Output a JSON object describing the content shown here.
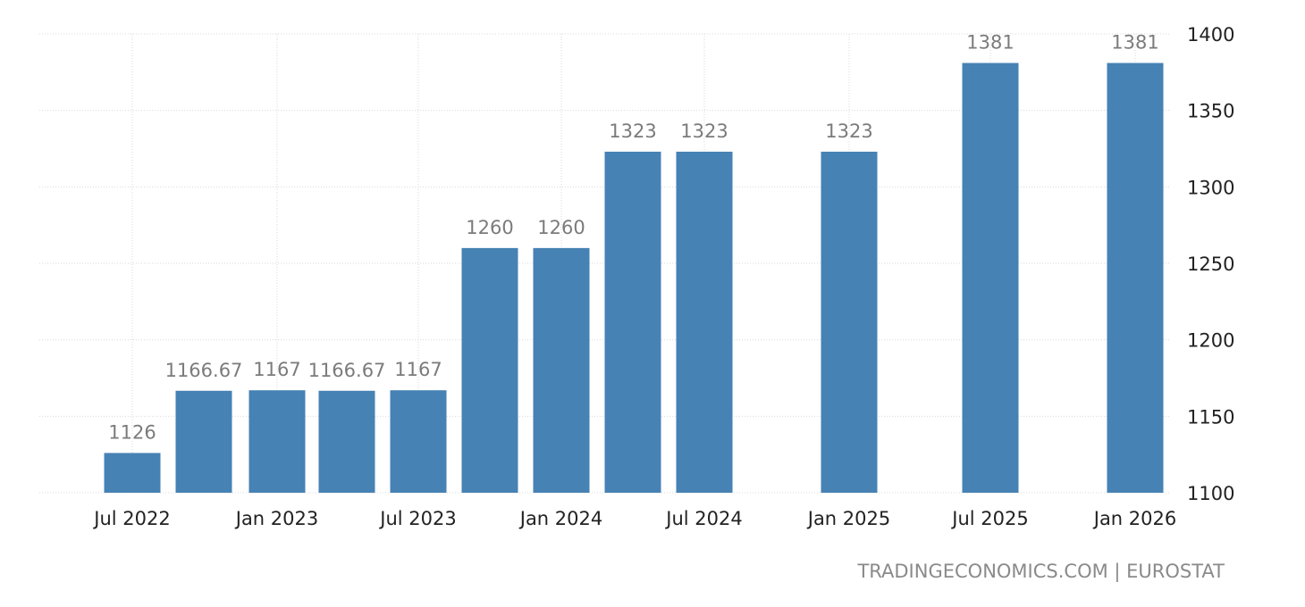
{
  "chart_data": {
    "type": "bar",
    "title": "",
    "xlabel": "",
    "ylabel": "",
    "ylim": [
      1100,
      1400
    ],
    "yticks": [
      1100,
      1150,
      1200,
      1250,
      1300,
      1350,
      1400
    ],
    "y_axis_side": "right",
    "grid": true,
    "bar_color": "#4682b4",
    "x_ticks": [
      {
        "label": "Jul 2022",
        "date": "2022-07-01"
      },
      {
        "label": "Jan 2023",
        "date": "2023-01-01"
      },
      {
        "label": "Jul 2023",
        "date": "2023-07-01"
      },
      {
        "label": "Jan 2024",
        "date": "2024-01-01"
      },
      {
        "label": "Jul 2024",
        "date": "2024-07-01"
      },
      {
        "label": "Jan 2025",
        "date": "2025-01-01"
      },
      {
        "label": "Jul 2025",
        "date": "2025-07-01"
      },
      {
        "label": "Jan 2026",
        "date": "2026-01-01"
      }
    ],
    "points": [
      {
        "date": "2022-07-01",
        "value": 1126,
        "label": "1126"
      },
      {
        "date": "2022-10-01",
        "value": 1166.67,
        "label": "1166.67"
      },
      {
        "date": "2023-01-01",
        "value": 1167,
        "label": "1167"
      },
      {
        "date": "2023-04-01",
        "value": 1166.67,
        "label": "1166.67"
      },
      {
        "date": "2023-07-01",
        "value": 1167,
        "label": "1167"
      },
      {
        "date": "2023-10-01",
        "value": 1260,
        "label": "1260"
      },
      {
        "date": "2024-01-01",
        "value": 1260,
        "label": "1260"
      },
      {
        "date": "2024-04-01",
        "value": 1323,
        "label": "1323"
      },
      {
        "date": "2024-07-01",
        "value": 1323,
        "label": "1323"
      },
      {
        "date": "2025-01-01",
        "value": 1323,
        "label": "1323"
      },
      {
        "date": "2025-07-01",
        "value": 1381,
        "label": "1381"
      },
      {
        "date": "2026-01-01",
        "value": 1381,
        "label": "1381"
      }
    ]
  },
  "source": "TRADINGECONOMICS.COM | EUROSTAT"
}
